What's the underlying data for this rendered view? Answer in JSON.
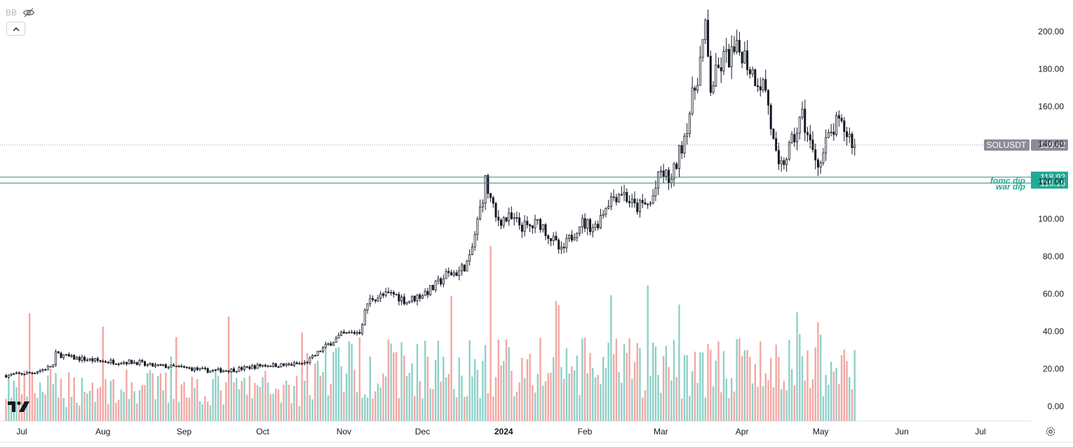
{
  "indicator_label": "BB",
  "icons": {
    "hide": "eye-slash-icon",
    "collapse": "chevron-up-icon",
    "logo": "tradingview-logo",
    "settings": "gear-icon"
  },
  "colors": {
    "bull_volume": "#8fd0c8",
    "bear_volume": "#f2a7a3",
    "candle": "#131722",
    "level_line": "#2a8a7a",
    "level_tag": "#22ab94",
    "symbol_tag": "#8a8d96"
  },
  "chart_data": {
    "type": "candlestick",
    "symbol": "SOLUSDT",
    "last_price": "139.42",
    "ylim": [
      -5,
      210
    ],
    "y_ticks": [
      "200.00",
      "180.00",
      "160.00",
      "140.00",
      "120.00",
      "100.00",
      "80.00",
      "60.00",
      "40.00",
      "20.00",
      "0.00"
    ],
    "x_ticks": [
      "Jul",
      "Aug",
      "Sep",
      "Oct",
      "Nov",
      "Dec",
      "2024",
      "Feb",
      "Mar",
      "Apr",
      "May",
      "Jun",
      "Jul"
    ],
    "levels": [
      {
        "label": "fomc dip",
        "value": "118.92"
      },
      {
        "label": "war dip",
        "value": "116.16"
      }
    ],
    "close_path": [
      {
        "date": "2023-06-25",
        "v": 16.5
      },
      {
        "date": "2023-07-05",
        "v": 18
      },
      {
        "date": "2023-07-10",
        "v": 20
      },
      {
        "date": "2023-07-13",
        "v": 22
      },
      {
        "date": "2023-07-14",
        "v": 28
      },
      {
        "date": "2023-07-20",
        "v": 26
      },
      {
        "date": "2023-08-01",
        "v": 24
      },
      {
        "date": "2023-08-15",
        "v": 23.5
      },
      {
        "date": "2023-08-17",
        "v": 22
      },
      {
        "date": "2023-08-29",
        "v": 21
      },
      {
        "date": "2023-09-11",
        "v": 19
      },
      {
        "date": "2023-09-20",
        "v": 19.5
      },
      {
        "date": "2023-10-01",
        "v": 22
      },
      {
        "date": "2023-10-10",
        "v": 22
      },
      {
        "date": "2023-10-17",
        "v": 23
      },
      {
        "date": "2023-10-20",
        "v": 26
      },
      {
        "date": "2023-10-24",
        "v": 31
      },
      {
        "date": "2023-10-31",
        "v": 38
      },
      {
        "date": "2023-11-07",
        "v": 40
      },
      {
        "date": "2023-11-10",
        "v": 55
      },
      {
        "date": "2023-11-12",
        "v": 58
      },
      {
        "date": "2023-11-20",
        "v": 60
      },
      {
        "date": "2023-11-25",
        "v": 56
      },
      {
        "date": "2023-12-01",
        "v": 60
      },
      {
        "date": "2023-12-05",
        "v": 63
      },
      {
        "date": "2023-12-10",
        "v": 70
      },
      {
        "date": "2023-12-15",
        "v": 72
      },
      {
        "date": "2023-12-19",
        "v": 78
      },
      {
        "date": "2023-12-23",
        "v": 105
      },
      {
        "date": "2023-12-25",
        "v": 120
      },
      {
        "date": "2023-12-29",
        "v": 100
      },
      {
        "date": "2024-01-03",
        "v": 100
      },
      {
        "date": "2024-01-10",
        "v": 95
      },
      {
        "date": "2024-01-15",
        "v": 98
      },
      {
        "date": "2024-01-23",
        "v": 82
      },
      {
        "date": "2024-01-30",
        "v": 98
      },
      {
        "date": "2024-02-05",
        "v": 96
      },
      {
        "date": "2024-02-10",
        "v": 110
      },
      {
        "date": "2024-02-15",
        "v": 115
      },
      {
        "date": "2024-02-20",
        "v": 106
      },
      {
        "date": "2024-02-26",
        "v": 108
      },
      {
        "date": "2024-03-01",
        "v": 125
      },
      {
        "date": "2024-03-05",
        "v": 120
      },
      {
        "date": "2024-03-10",
        "v": 145
      },
      {
        "date": "2024-03-14",
        "v": 170
      },
      {
        "date": "2024-03-18",
        "v": 200
      },
      {
        "date": "2024-03-20",
        "v": 170
      },
      {
        "date": "2024-03-25",
        "v": 185
      },
      {
        "date": "2024-04-01",
        "v": 190
      },
      {
        "date": "2024-04-05",
        "v": 178
      },
      {
        "date": "2024-04-10",
        "v": 170
      },
      {
        "date": "2024-04-13",
        "v": 140
      },
      {
        "date": "2024-04-15",
        "v": 125
      },
      {
        "date": "2024-04-20",
        "v": 140
      },
      {
        "date": "2024-04-24",
        "v": 155
      },
      {
        "date": "2024-04-28",
        "v": 135
      },
      {
        "date": "2024-05-01",
        "v": 130
      },
      {
        "date": "2024-05-03",
        "v": 140
      },
      {
        "date": "2024-05-07",
        "v": 150
      },
      {
        "date": "2024-05-10",
        "v": 148
      },
      {
        "date": "2024-05-14",
        "v": 139.42
      }
    ]
  }
}
